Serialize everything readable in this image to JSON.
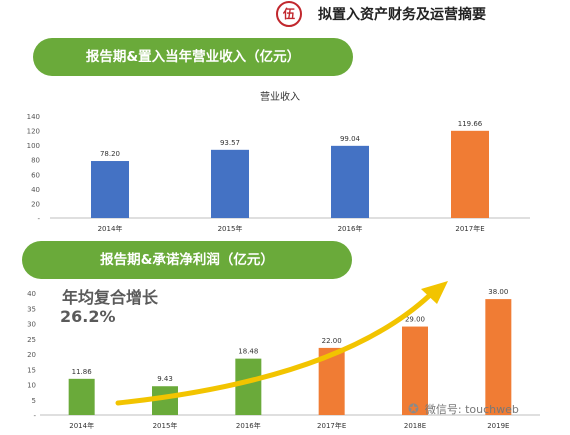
{
  "header": {
    "badge": "伍",
    "title": "拟置入资产财务及运营摘要"
  },
  "section1": {
    "pill_label": "报告期&置入当年营业收入（亿元）"
  },
  "section2": {
    "pill_label": "报告期&承诺净利润（亿元）"
  },
  "cagr": {
    "title": "年均复合增长",
    "value": "26.2%"
  },
  "watermark": {
    "text": "微信号: touchweb"
  },
  "colors": {
    "green": "#6aaa3a",
    "blue": "#4472c4",
    "orange": "#f07c34",
    "arrow": "#f2c400"
  },
  "chart_data": [
    {
      "type": "bar",
      "title": "营业收入",
      "categories": [
        "2014年",
        "2015年",
        "2016年",
        "2017年E"
      ],
      "values": [
        78.2,
        93.57,
        99.04,
        119.66
      ],
      "value_labels": [
        "78.20",
        "93.57",
        "99.04",
        "119.66"
      ],
      "bar_colors": [
        "#4472c4",
        "#4472c4",
        "#4472c4",
        "#f07c34"
      ],
      "ylim": [
        0,
        140
      ],
      "yticks": [
        0,
        20,
        40,
        60,
        80,
        100,
        120,
        140
      ],
      "ytick_labels": [
        "-",
        "20",
        "40",
        "60",
        "80",
        "100",
        "120",
        "140"
      ],
      "grid": false
    },
    {
      "type": "bar",
      "title": "",
      "categories": [
        "2014年",
        "2015年",
        "2016年",
        "2017年E",
        "2018E",
        "2019E"
      ],
      "values": [
        11.86,
        9.43,
        18.48,
        22.0,
        29.0,
        38.0
      ],
      "value_labels": [
        "11.86",
        "9.43",
        "18.48",
        "22.00",
        "29.00",
        "38.00"
      ],
      "bar_colors": [
        "#6aaa3a",
        "#6aaa3a",
        "#6aaa3a",
        "#f07c34",
        "#f07c34",
        "#f07c34"
      ],
      "ylim": [
        0,
        40
      ],
      "yticks": [
        0,
        5,
        10,
        15,
        20,
        25,
        30,
        35,
        40
      ],
      "ytick_labels": [
        "-",
        "5",
        "10",
        "15",
        "20",
        "25",
        "30",
        "35",
        "40"
      ],
      "grid": false
    }
  ]
}
